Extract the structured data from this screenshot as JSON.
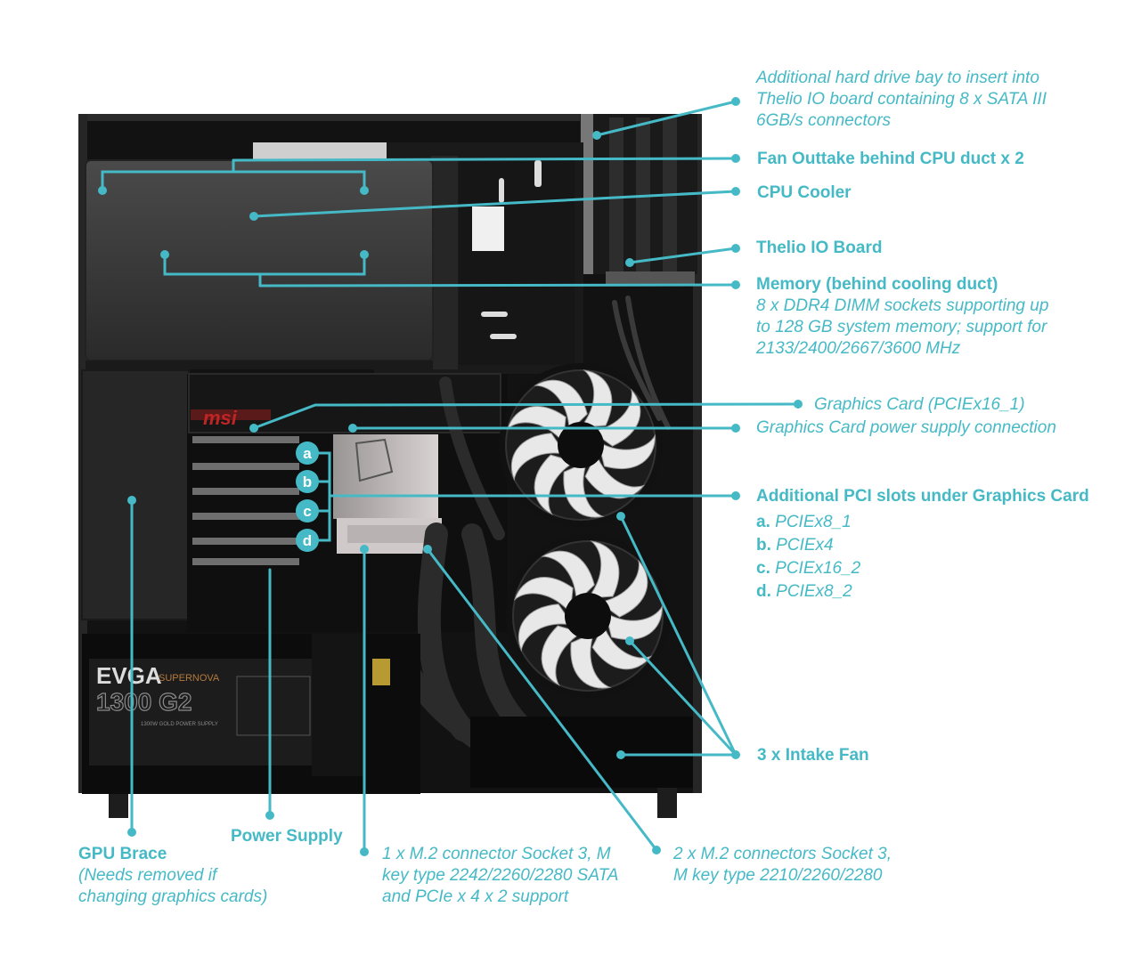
{
  "colors": {
    "accent": "#45bac6",
    "case": "#111111",
    "panel": "#3c3c3c",
    "fan_blade": "#e6e6e6"
  },
  "psu": {
    "brand": "EVGA",
    "series": "SUPERNOVA",
    "model": "1300 G2",
    "subtitle": "1300W GOLD POWER SUPPLY"
  },
  "gpu": {
    "brand": "msi"
  },
  "badges": [
    "a",
    "b",
    "c",
    "d"
  ],
  "labels": {
    "hdd_bay": [
      "Additional hard drive bay to insert into",
      "Thelio IO board containing 8 x SATA III",
      "6GB/s connectors"
    ],
    "fan_outtake": "Fan Outtake behind CPU duct x 2",
    "cpu_cooler": "CPU Cooler",
    "thelio_io": "Thelio IO Board",
    "memory": {
      "title": "Memory (behind cooling duct)",
      "lines": [
        "8 x DDR4 DIMM sockets supporting up",
        "to 128 GB system memory; support for",
        "2133/2400/2667/3600 MHz"
      ]
    },
    "graphics_card": "Graphics Card (PCIEx16_1)",
    "gpu_power": "Graphics Card power supply connection",
    "pci_slots": {
      "title": "Additional PCI slots under Graphics Card",
      "items": [
        {
          "letter": "a.",
          "name": "PCIEx8_1"
        },
        {
          "letter": "b.",
          "name": "PCIEx4"
        },
        {
          "letter": "c.",
          "name": "PCIEx16_2"
        },
        {
          "letter": "d.",
          "name": "PCIEx8_2"
        }
      ]
    },
    "intake_fan": "3 x Intake Fan",
    "gpu_brace": {
      "title": "GPU Brace",
      "lines": [
        "(Needs removed if",
        "changing graphics cards)"
      ]
    },
    "power_supply": "Power Supply",
    "m2_single": [
      "1 x M.2 connector Socket 3, M",
      "key type 2242/2260/2280 SATA",
      "and PCIe x 4 x 2 support"
    ],
    "m2_double": [
      "2 x M.2 connectors Socket 3,",
      "M key type 2210/2260/2280"
    ]
  }
}
